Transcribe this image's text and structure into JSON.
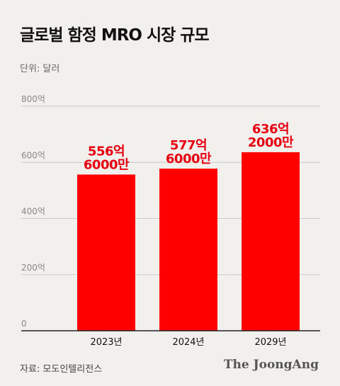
{
  "chart_data": {
    "type": "bar",
    "title": "글로벌 함정 MRO 시장 규모",
    "unit_label": "단위: 달러",
    "categories": [
      "2023년",
      "2024년",
      "2029년"
    ],
    "values": [
      55660000000,
      57760000000,
      63620000000
    ],
    "data_labels": [
      [
        "556억",
        "6000만"
      ],
      [
        "577억",
        "6000만"
      ],
      [
        "636억",
        "2000만"
      ]
    ],
    "y_ticks": [
      {
        "value": 0,
        "label": "0"
      },
      {
        "value": 20000000000,
        "label": "200억"
      },
      {
        "value": 40000000000,
        "label": "400억"
      },
      {
        "value": 60000000000,
        "label": "600억"
      },
      {
        "value": 80000000000,
        "label": "800억"
      }
    ],
    "ylim": [
      0,
      80000000000
    ],
    "grid": true,
    "colors": {
      "bar": "#ff0000",
      "data_label": "#e60012",
      "grid": "#c8c8c8",
      "axis": "#222222",
      "tick_label": "#888888",
      "category_label": "#111111"
    }
  },
  "footer": {
    "source": "자료: 모도인텔리전스",
    "brand": "The JoongAng"
  }
}
